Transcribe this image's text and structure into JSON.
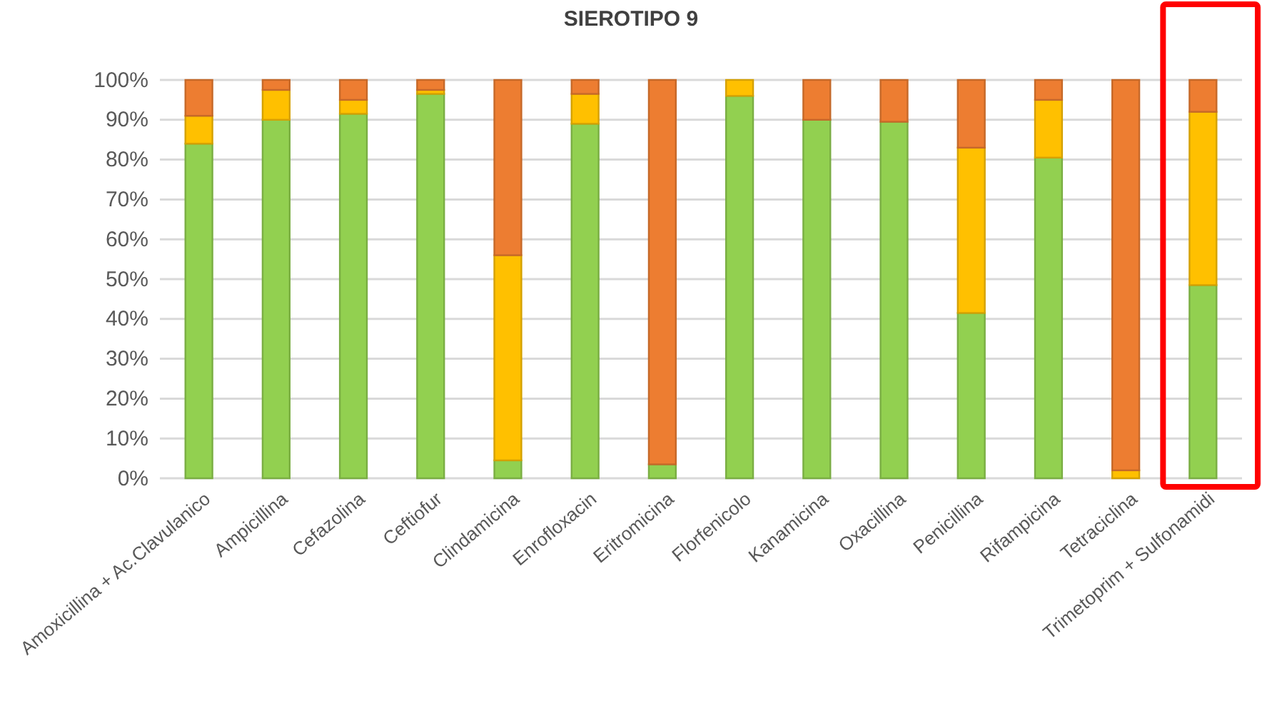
{
  "chart_data": {
    "type": "bar",
    "title": "SIEROTIPO 9",
    "stacked": true,
    "categories": [
      "Amoxicillina + Ac.Clavulanico",
      "Ampicillina",
      "Cefazolina",
      "Ceftiofur",
      "Clindamicina",
      "Enrofloxacin",
      "Eritromicina",
      "Florfenicolo",
      "Kanamicina",
      "Oxacillina",
      "Penicillina",
      "Rifampicina",
      "Tetraciclina",
      "Trimetoprim + Sulfonamidi"
    ],
    "series": [
      {
        "color": "#92d050",
        "values": [
          84,
          90,
          91.5,
          96.5,
          4.5,
          89,
          3.5,
          96,
          90,
          89.5,
          41.5,
          80.5,
          0,
          48.5
        ]
      },
      {
        "color": "#ffc000",
        "values": [
          7,
          7.5,
          3.5,
          1,
          51.5,
          7.5,
          0,
          4,
          0,
          0,
          41.5,
          14.5,
          2,
          43.5
        ]
      },
      {
        "color": "#ed7d31",
        "values": [
          9,
          2.5,
          5,
          2.5,
          44,
          3.5,
          96.5,
          0,
          10,
          10.5,
          17,
          5,
          98,
          8
        ]
      }
    ],
    "ylim": [
      0,
      100
    ],
    "yticks": [
      {
        "value": 0,
        "label": "0%"
      },
      {
        "value": 10,
        "label": "10%"
      },
      {
        "value": 20,
        "label": "20%"
      },
      {
        "value": 30,
        "label": "30%"
      },
      {
        "value": 40,
        "label": "40%"
      },
      {
        "value": 50,
        "label": "50%"
      },
      {
        "value": 60,
        "label": "60%"
      },
      {
        "value": 70,
        "label": "70%"
      },
      {
        "value": 80,
        "label": "80%"
      },
      {
        "value": 90,
        "label": "90%"
      },
      {
        "value": 100,
        "label": "100%"
      }
    ],
    "grid": "y",
    "legend": false
  }
}
